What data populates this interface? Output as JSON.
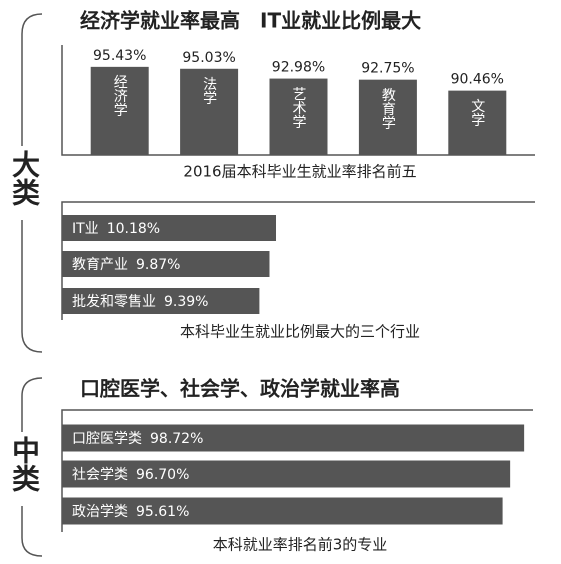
{
  "groups": [
    {
      "label": "大类"
    },
    {
      "label": "中类"
    }
  ],
  "chart_data": [
    {
      "type": "bar",
      "title": "经济学就业率最高　IT业就业比例最大",
      "caption": "2016届本科毕业生就业率排名前五",
      "categories": [
        "经济学",
        "法学",
        "艺术学",
        "教育学",
        "文学"
      ],
      "values": [
        95.43,
        95.03,
        92.98,
        92.75,
        90.46
      ],
      "value_labels": [
        "95.43%",
        "95.03%",
        "92.98%",
        "92.75%",
        "90.46%"
      ],
      "color": "#555555",
      "ylim": [
        77,
        100
      ]
    },
    {
      "type": "barh",
      "caption": "本科毕业生就业比例最大的三个行业",
      "categories": [
        "IT业",
        "教育产业",
        "批发和零售业"
      ],
      "values": [
        10.18,
        9.87,
        9.39
      ],
      "value_labels": [
        "10.18%",
        "9.87%",
        "9.39%"
      ],
      "color": "#555555",
      "xlim": [
        0,
        22.5
      ]
    },
    {
      "type": "barh",
      "title": "口腔医学、社会学、政治学就业率高",
      "caption": "本科就业率排名前3的专业",
      "categories": [
        "口腔医学类",
        "社会学类",
        "政治学类"
      ],
      "values": [
        98.72,
        96.7,
        95.61
      ],
      "value_labels": [
        "98.72%",
        "96.70%",
        "95.61%"
      ],
      "color": "#555555",
      "xlim": [
        32,
        100
      ]
    }
  ]
}
